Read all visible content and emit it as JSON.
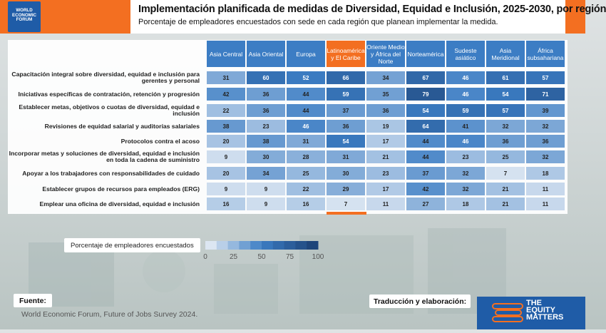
{
  "header": {
    "logo_lines": [
      "WORLD",
      "ECONOMIC",
      "FORUM"
    ],
    "title": "Implementación planificada de medidas de Diversidad, Equidad e Inclusión, 2025-2030, por región",
    "subtitle": "Porcentaje de empleadores encuestados con sede en cada región que planean implementar la medida."
  },
  "chart_data": {
    "type": "heatmap",
    "title": "Implementación planificada de medidas de Diversidad, Equidad e Inclusión, 2025-2030, por región",
    "subtitle": "Porcentaje de empleadores encuestados con sede en cada región que planean implementar la medida.",
    "columns": [
      "Asia Central",
      "Asia Oriental",
      "Europa",
      "Latinoamérica y El Caribe",
      "Oriente Medio y África del Norte",
      "Norteamérica",
      "Sudeste asiático",
      "Asia Meridional",
      "África subsahariana"
    ],
    "highlight_column": "Latinoamérica y El Caribe",
    "rows": [
      {
        "label": "Capacitación integral sobre diversidad, equidad e inclusión para gerentes y personal",
        "values": [
          31,
          60,
          52,
          66,
          34,
          67,
          46,
          61,
          57
        ]
      },
      {
        "label": "Iniciativas específicas de contratación, retención y progresión",
        "values": [
          42,
          36,
          44,
          59,
          35,
          79,
          46,
          54,
          71
        ]
      },
      {
        "label": "Establecer metas, objetivos o cuotas de diversidad, equidad e inclusión",
        "values": [
          22,
          36,
          44,
          37,
          36,
          54,
          59,
          57,
          39
        ]
      },
      {
        "label": "Revisiones de equidad salarial y auditorías salariales",
        "values": [
          38,
          23,
          46,
          36,
          19,
          64,
          41,
          32,
          32
        ]
      },
      {
        "label": "Protocolos contra el acoso",
        "values": [
          20,
          38,
          31,
          54,
          17,
          44,
          46,
          36,
          36
        ]
      },
      {
        "label": "Incorporar metas y soluciones de diversidad, equidad e inclusión en toda la cadena de suministro",
        "values": [
          9,
          30,
          28,
          31,
          21,
          44,
          23,
          25,
          32
        ]
      },
      {
        "label": "Apoyar a los trabajadores con responsabilidades de cuidado",
        "values": [
          20,
          34,
          25,
          30,
          23,
          37,
          32,
          7,
          18
        ]
      },
      {
        "label": "Establecer grupos de recursos para empleados (ERG)",
        "values": [
          9,
          9,
          22,
          29,
          17,
          42,
          32,
          21,
          11
        ]
      },
      {
        "label": "Emplear una oficina de diversidad, equidad e inclusión",
        "values": [
          16,
          9,
          16,
          7,
          11,
          27,
          18,
          21,
          11
        ]
      }
    ],
    "scale": {
      "min": 0,
      "max": 100,
      "ticks": [
        0,
        25,
        50,
        75,
        100
      ],
      "color_low": "#eef2f7",
      "color_high": "#1b3f72"
    }
  },
  "legend": {
    "label": "Porcentaje de empleadores encuestados",
    "ticks": [
      "0",
      "25",
      "50",
      "75",
      "100"
    ]
  },
  "footer": {
    "source_label": "Fuente:",
    "source_text": "World Economic Forum, Future of Jobs Survey 2024.",
    "credit_label": "Traducción y elaboración:",
    "logo_lines": [
      "THE",
      "EQUITY",
      "MATTERS"
    ]
  },
  "colors": {
    "accent_orange": "#f36f21",
    "header_blue": "#3c7dc4",
    "logo_blue": "#1f5ca7"
  }
}
